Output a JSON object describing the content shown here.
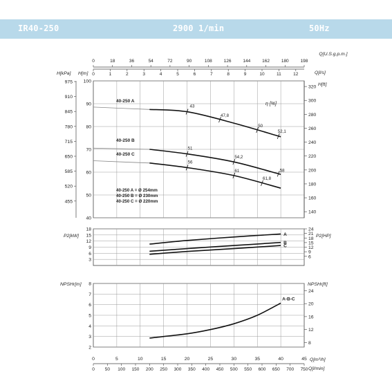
{
  "header": {
    "model": "IR40-250",
    "speed": "2900 1/min",
    "frequency": "50Hz"
  },
  "chart_data": [
    {
      "type": "line",
      "title": "",
      "top_axes": [
        {
          "label": "Q[U.S.g.p.m.]",
          "ticks": [
            0,
            18,
            36,
            54,
            72,
            90,
            108,
            126,
            144,
            162,
            180,
            198
          ]
        },
        {
          "label": "Q[l/s]",
          "ticks": [
            0,
            1,
            2,
            3,
            4,
            5,
            6,
            7,
            8,
            9,
            10,
            11,
            12
          ]
        }
      ],
      "ylabel": "H[m]",
      "ylim": [
        40,
        100
      ],
      "yticks": [
        40,
        50,
        60,
        70,
        80,
        90,
        100
      ],
      "ylabel_kpa": "H[kPa]",
      "kpa_ticks": [
        "975",
        "910",
        "845",
        "780",
        "715",
        "650",
        "585",
        "520",
        "455"
      ],
      "ylabel_right": "H[ft]",
      "ft_ticks": [
        140,
        160,
        180,
        200,
        220,
        240,
        260,
        280,
        300,
        320
      ],
      "efficiency_label": "η [%]",
      "series": [
        {
          "name": "40-250 A",
          "x": [
            0,
            12,
            20,
            30,
            40
          ],
          "y": [
            88.5,
            87.5,
            86.5,
            81.5,
            75.5
          ]
        },
        {
          "name": "40-250 B",
          "x": [
            0,
            12,
            20,
            30,
            40
          ],
          "y": [
            70.5,
            70,
            68,
            64.5,
            59
          ]
        },
        {
          "name": "40-250 C",
          "x": [
            0,
            12,
            20,
            30,
            40
          ],
          "y": [
            65,
            64,
            62,
            58.5,
            53
          ]
        }
      ],
      "efficiency_marks": [
        {
          "series": "40-250 A",
          "label": "43",
          "x": 20
        },
        {
          "series": "40-250 A",
          "label": "47,8",
          "x": 27
        },
        {
          "series": "40-250 A",
          "label": "50",
          "x": 35
        },
        {
          "series": "40-250 A",
          "label": "52,1",
          "x": 39.5
        },
        {
          "series": "40-250 B",
          "label": "51",
          "x": 20
        },
        {
          "series": "40-250 B",
          "label": "54,2",
          "x": 30
        },
        {
          "series": "40-250 B",
          "label": "58",
          "x": 39.5
        },
        {
          "series": "40-250 C",
          "label": "56",
          "x": 20
        },
        {
          "series": "40-250 C",
          "label": "61",
          "x": 30
        },
        {
          "series": "40-250 C",
          "label": "61,8",
          "x": 36
        }
      ],
      "impeller_legend": [
        "40-250 A = Ø 254mm",
        "40-250 B = Ø 230mm",
        "40-250 C = Ø 220mm"
      ]
    },
    {
      "type": "line",
      "ylabel": "P2[kW]",
      "ylim": [
        0,
        18
      ],
      "yticks": [
        3,
        6,
        9,
        12,
        15,
        18
      ],
      "ylabel_right": "P2[HP]",
      "ylim_right": [
        0,
        24
      ],
      "right_ticks": [
        6,
        9,
        12,
        15,
        18,
        21,
        24
      ],
      "series": [
        {
          "name": "A",
          "x": [
            12,
            20,
            30,
            40
          ],
          "y": [
            10.5,
            12.3,
            14,
            15.5
          ]
        },
        {
          "name": "B",
          "x": [
            12,
            20,
            30,
            40
          ],
          "y": [
            7,
            8.3,
            9.8,
            11.3
          ]
        },
        {
          "name": "C",
          "x": [
            12,
            20,
            30,
            40
          ],
          "y": [
            5.5,
            6.9,
            8.3,
            9.8
          ]
        }
      ]
    },
    {
      "type": "line",
      "ylabel": "NPSHr[m]",
      "ylim": [
        2,
        8
      ],
      "yticks": [
        2,
        3,
        4,
        5,
        6,
        7,
        8
      ],
      "ylabel_right": "NPSHr[ft]",
      "right_ticks": [
        8,
        12,
        16,
        20,
        24
      ],
      "series": [
        {
          "name": "A-B-C",
          "x": [
            12,
            20,
            25,
            30,
            35,
            40
          ],
          "y": [
            2.85,
            3.25,
            3.65,
            4.2,
            5.0,
            6.15
          ]
        }
      ],
      "xlabel": "Q[m³/h]",
      "xticks": [
        0,
        5,
        10,
        15,
        20,
        25,
        30,
        35,
        40,
        45
      ],
      "xlabel_secondary": "Q[l/min]",
      "x_secondary_ticks": [
        0,
        50,
        100,
        150,
        200,
        250,
        300,
        350,
        400,
        450,
        500,
        550,
        600,
        650,
        700,
        750
      ]
    }
  ]
}
